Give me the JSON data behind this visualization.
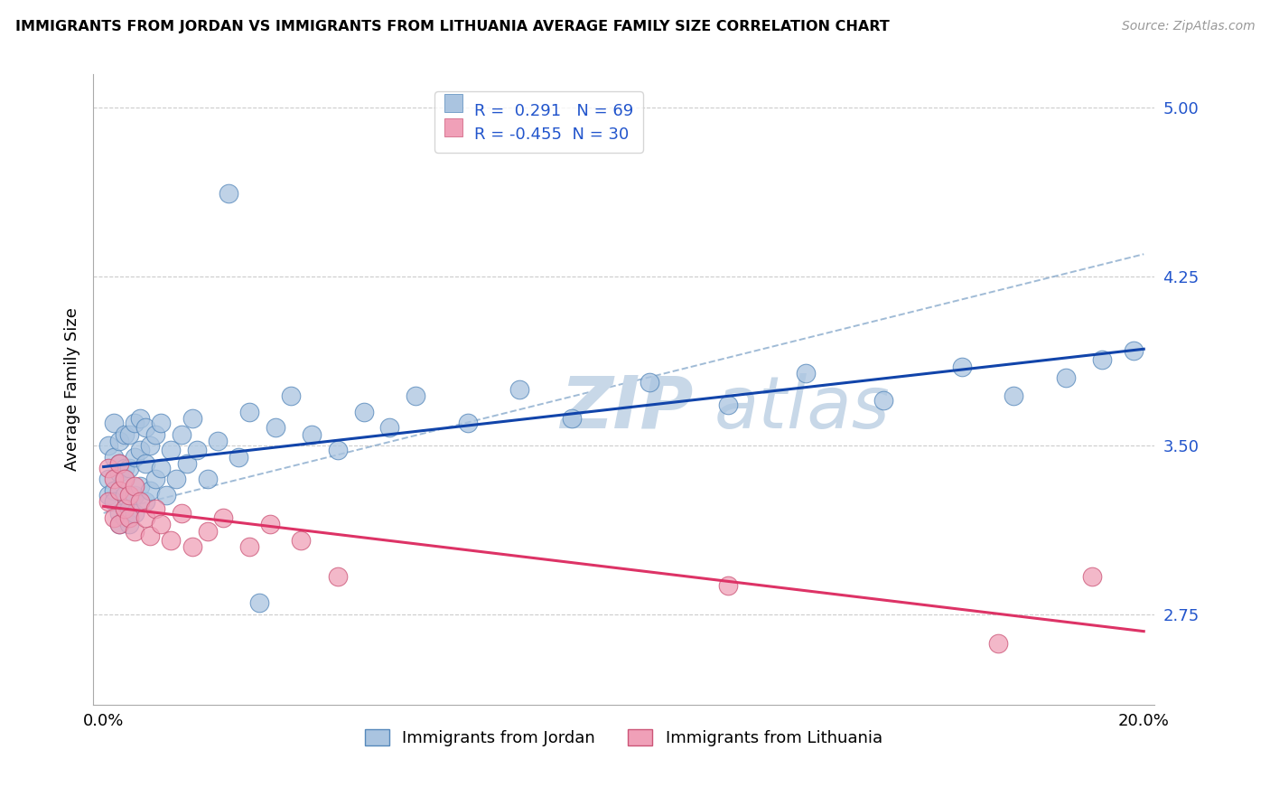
{
  "title": "IMMIGRANTS FROM JORDAN VS IMMIGRANTS FROM LITHUANIA AVERAGE FAMILY SIZE CORRELATION CHART",
  "source": "Source: ZipAtlas.com",
  "ylabel": "Average Family Size",
  "xlim": [
    -0.002,
    0.202
  ],
  "ylim": [
    2.35,
    5.15
  ],
  "yticks": [
    2.75,
    3.5,
    4.25,
    5.0
  ],
  "xtick_positions": [
    0.0,
    0.05,
    0.1,
    0.15,
    0.2
  ],
  "xticklabels": [
    "0.0%",
    "",
    "",
    "",
    "20.0%"
  ],
  "jordan_color": "#aac4e0",
  "jordan_edge": "#5588bb",
  "lithuania_color": "#f0a0b8",
  "lithuania_edge": "#cc5577",
  "jordan_line_color": "#1144aa",
  "lithuania_line_color": "#dd3366",
  "grey_line_color": "#88aacc",
  "jordan_R": 0.291,
  "jordan_N": 69,
  "lithuania_R": -0.455,
  "lithuania_N": 30,
  "legend_label_jordan": "Immigrants from Jordan",
  "legend_label_lithuania": "Immigrants from Lithuania",
  "watermark_zip": "ZIP",
  "watermark_atlas": "atlas",
  "jordan_x": [
    0.001,
    0.001,
    0.001,
    0.002,
    0.002,
    0.002,
    0.002,
    0.003,
    0.003,
    0.003,
    0.003,
    0.003,
    0.004,
    0.004,
    0.004,
    0.004,
    0.004,
    0.005,
    0.005,
    0.005,
    0.005,
    0.006,
    0.006,
    0.006,
    0.006,
    0.007,
    0.007,
    0.007,
    0.008,
    0.008,
    0.008,
    0.009,
    0.009,
    0.01,
    0.01,
    0.011,
    0.011,
    0.012,
    0.013,
    0.014,
    0.015,
    0.016,
    0.017,
    0.018,
    0.02,
    0.022,
    0.024,
    0.026,
    0.028,
    0.03,
    0.033,
    0.036,
    0.04,
    0.045,
    0.05,
    0.055,
    0.06,
    0.07,
    0.08,
    0.09,
    0.105,
    0.12,
    0.135,
    0.15,
    0.165,
    0.175,
    0.185,
    0.192,
    0.198
  ],
  "jordan_y": [
    3.35,
    3.5,
    3.28,
    3.3,
    3.45,
    3.6,
    3.25,
    3.2,
    3.38,
    3.52,
    3.15,
    3.42,
    3.28,
    3.4,
    3.55,
    3.18,
    3.35,
    3.22,
    3.4,
    3.55,
    3.15,
    3.28,
    3.45,
    3.6,
    3.2,
    3.32,
    3.48,
    3.62,
    3.25,
    3.42,
    3.58,
    3.3,
    3.5,
    3.35,
    3.55,
    3.4,
    3.6,
    3.28,
    3.48,
    3.35,
    3.55,
    3.42,
    3.62,
    3.48,
    3.35,
    3.52,
    4.62,
    3.45,
    3.65,
    2.8,
    3.58,
    3.72,
    3.55,
    3.48,
    3.65,
    3.58,
    3.72,
    3.6,
    3.75,
    3.62,
    3.78,
    3.68,
    3.82,
    3.7,
    3.85,
    3.72,
    3.8,
    3.88,
    3.92
  ],
  "lithuania_x": [
    0.001,
    0.001,
    0.002,
    0.002,
    0.003,
    0.003,
    0.003,
    0.004,
    0.004,
    0.005,
    0.005,
    0.006,
    0.006,
    0.007,
    0.008,
    0.009,
    0.01,
    0.011,
    0.013,
    0.015,
    0.017,
    0.02,
    0.023,
    0.028,
    0.032,
    0.038,
    0.045,
    0.12,
    0.172,
    0.19
  ],
  "lithuania_y": [
    3.4,
    3.25,
    3.35,
    3.18,
    3.3,
    3.15,
    3.42,
    3.22,
    3.35,
    3.28,
    3.18,
    3.32,
    3.12,
    3.25,
    3.18,
    3.1,
    3.22,
    3.15,
    3.08,
    3.2,
    3.05,
    3.12,
    3.18,
    3.05,
    3.15,
    3.08,
    2.92,
    2.88,
    2.62,
    2.92
  ]
}
